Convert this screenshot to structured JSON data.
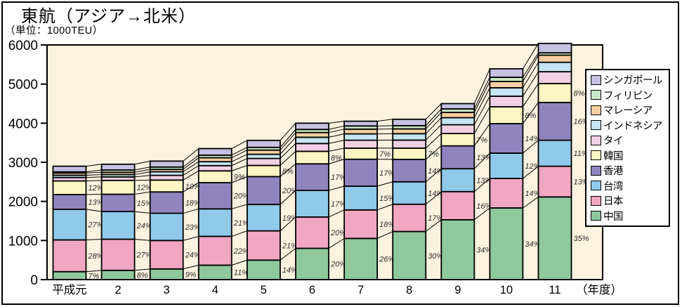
{
  "chart_data": {
    "type": "bar",
    "variant": "stacked-column-with-connector-lines",
    "title": "東航（アジア→北米）",
    "unit_label": "（単位：1000TEU）",
    "x_suffix": "（年度）",
    "categories": [
      "平成元",
      "2",
      "3",
      "4",
      "5",
      "6",
      "7",
      "8",
      "9",
      "10",
      "11"
    ],
    "totals_1000teu": [
      2900,
      2950,
      3030,
      3350,
      3560,
      4000,
      4050,
      4100,
      4500,
      5390,
      6040
    ],
    "ylim": [
      0,
      6000
    ],
    "ytick_step": 1000,
    "yticks": [
      "0",
      "1000",
      "2000",
      "3000",
      "4000",
      "5000",
      "6000"
    ],
    "plot_bg": "#fbf2df",
    "grid": false,
    "legend_position": "right-overlay",
    "series": [
      {
        "name": "中国",
        "color": "#8ec89d",
        "labeled": true,
        "pct": [
          7,
          8,
          9,
          11,
          14,
          20,
          26,
          30,
          34,
          34,
          35
        ]
      },
      {
        "name": "日本",
        "color": "#f1a6c2",
        "labeled": true,
        "pct": [
          28,
          27,
          24,
          22,
          21,
          20,
          18,
          17,
          16,
          14,
          13
        ]
      },
      {
        "name": "台湾",
        "color": "#90c9ea",
        "labeled": true,
        "pct": [
          27,
          24,
          23,
          21,
          19,
          17,
          15,
          14,
          13,
          12,
          11
        ]
      },
      {
        "name": "香港",
        "color": "#9084bf",
        "labeled": true,
        "pct": [
          13,
          15,
          18,
          20,
          20,
          17,
          17,
          14,
          13,
          14,
          16
        ]
      },
      {
        "name": "韓国",
        "color": "#fdf5c4",
        "labeled": true,
        "pct": [
          12,
          12,
          10,
          9,
          8,
          8,
          7,
          7,
          7,
          8,
          8
        ]
      },
      {
        "name": "タイ",
        "color": "#f1d0e3",
        "labeled": false,
        "pct": [
          3,
          3,
          4,
          4,
          5,
          5,
          5,
          5,
          5,
          5,
          5
        ]
      },
      {
        "name": "インドネシア",
        "color": "#c5e5f3",
        "labeled": false,
        "pct": [
          2,
          2,
          3,
          3,
          3,
          4,
          4,
          4,
          4,
          4,
          4
        ]
      },
      {
        "name": "マレーシア",
        "color": "#f6cda0",
        "labeled": false,
        "pct": [
          2,
          2,
          2,
          3,
          3,
          3,
          3,
          3,
          3,
          3,
          3
        ]
      },
      {
        "name": "フィリピン",
        "color": "#c8e7c6",
        "labeled": false,
        "pct": [
          1,
          2,
          2,
          2,
          2,
          2,
          2,
          2,
          2,
          2,
          1
        ]
      },
      {
        "name": "シンガポール",
        "color": "#c6c0e2",
        "labeled": false,
        "pct": [
          5,
          5,
          5,
          5,
          5,
          4,
          3,
          4,
          3,
          4,
          4
        ]
      }
    ],
    "legend_items": [
      {
        "label": "シンガポール",
        "color": "#c6c0e2"
      },
      {
        "label": "フィリピン",
        "color": "#c8e7c6"
      },
      {
        "label": "マレーシア",
        "color": "#f6cda0"
      },
      {
        "label": "インドネシア",
        "color": "#c5e5f3"
      },
      {
        "label": "タイ",
        "color": "#f1d0e3"
      },
      {
        "label": "韓国",
        "color": "#fdf5c4"
      },
      {
        "label": "香港",
        "color": "#9084bf"
      },
      {
        "label": "台湾",
        "color": "#90c9ea"
      },
      {
        "label": "日本",
        "color": "#f1a6c2"
      },
      {
        "label": "中国",
        "color": "#8ec89d"
      }
    ]
  }
}
